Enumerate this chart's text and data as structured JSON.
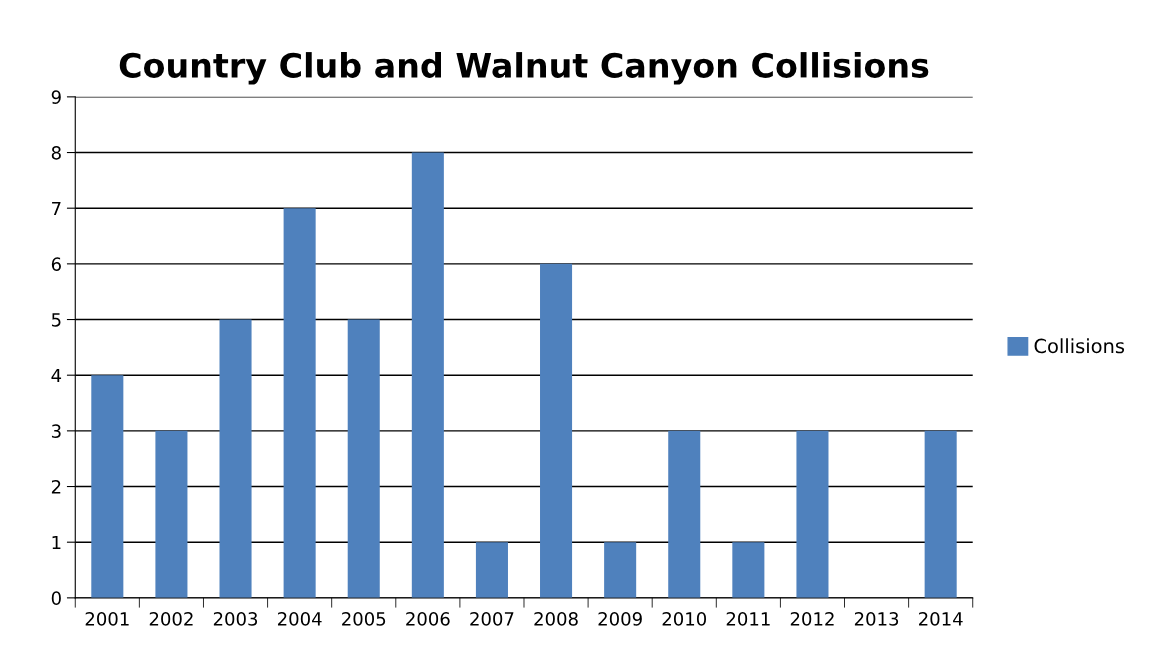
{
  "chart_data": {
    "type": "bar",
    "title": "Country Club and Walnut Canyon Collisions",
    "categories": [
      "2001",
      "2002",
      "2003",
      "2004",
      "2005",
      "2006",
      "2007",
      "2008",
      "2009",
      "2010",
      "2011",
      "2012",
      "2013",
      "2014"
    ],
    "series": [
      {
        "name": "Collisions",
        "color": "#4f81bd",
        "values": [
          4,
          3,
          5,
          7,
          5,
          8,
          1,
          6,
          1,
          3,
          1,
          3,
          0,
          3
        ]
      }
    ],
    "ylim": [
      0,
      9
    ],
    "yticks": [
      0,
      1,
      2,
      3,
      4,
      5,
      6,
      7,
      8,
      9
    ],
    "grid": "y",
    "legend": "right"
  }
}
